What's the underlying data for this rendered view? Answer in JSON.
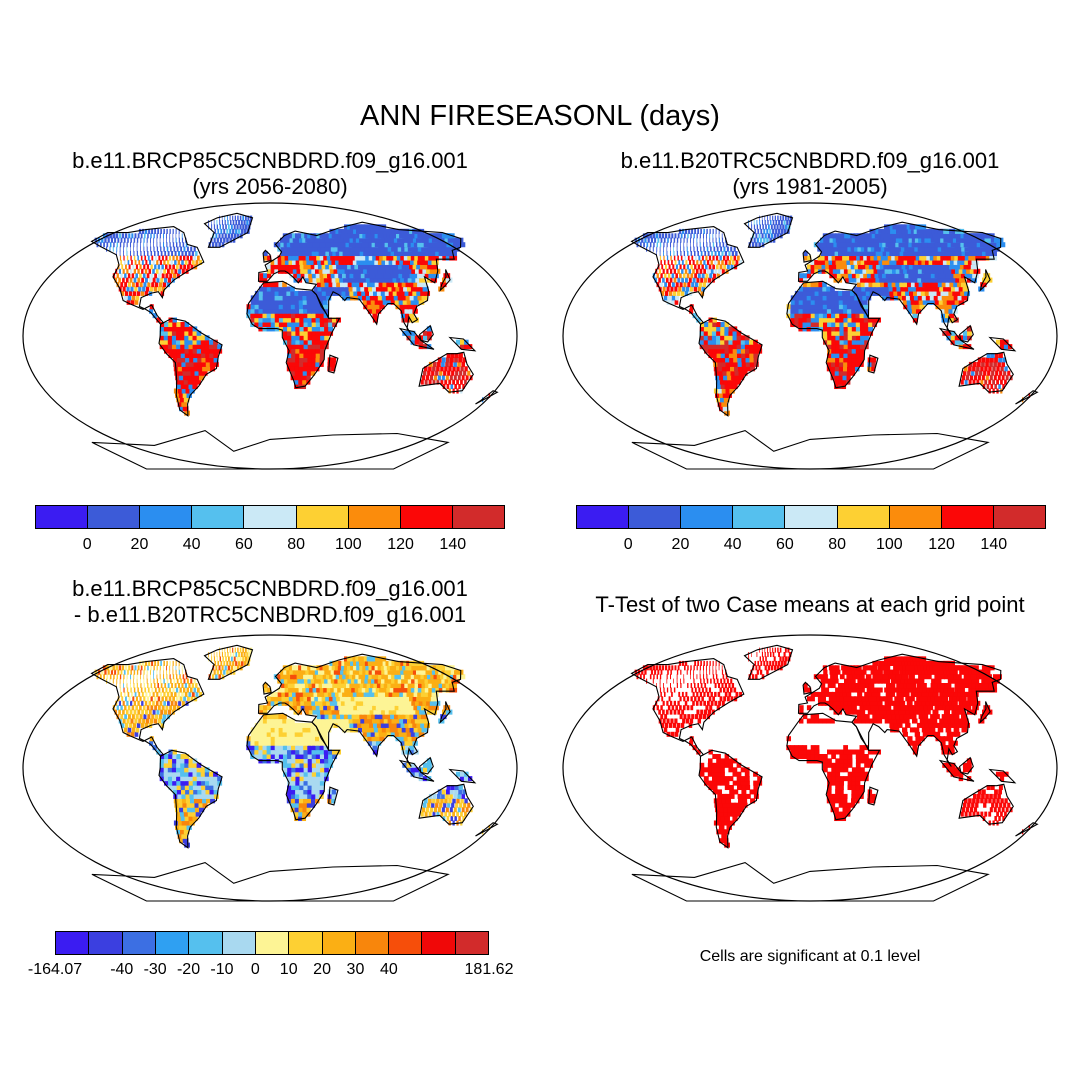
{
  "title": "ANN FIRESEASONL (days)",
  "panels": [
    {
      "id": "case1",
      "title_line1": "b.e11.BRCP85C5CNBDRD.f09_g16.001",
      "title_line2": "(yrs 2056-2080)",
      "palette": "abs"
    },
    {
      "id": "case2",
      "title_line1": "b.e11.B20TRC5CNBDRD.f09_g16.001",
      "title_line2": "(yrs 1981-2005)",
      "palette": "abs"
    },
    {
      "id": "diff",
      "title_line1": "b.e11.BRCP85C5CNBDRD.f09_g16.001",
      "title_line2": "- b.e11.B20TRC5CNBDRD.f09_g16.001",
      "palette": "diff"
    },
    {
      "id": "ttest",
      "title_line1": "T-Test of two Case means at each grid point",
      "title_line2": "",
      "palette": "sig"
    }
  ],
  "colorbar_abs": {
    "colors": [
      "#3b1cf2",
      "#3c5bd8",
      "#2b8ef0",
      "#55c0ee",
      "#cbe9f6",
      "#fdd033",
      "#fb8c0c",
      "#fb0707",
      "#d22b2b"
    ],
    "labels": [
      "0",
      "20",
      "40",
      "60",
      "80",
      "100",
      "120",
      "140"
    ]
  },
  "colorbar_diff": {
    "colors": [
      "#3b1cf2",
      "#3b3fe0",
      "#3c6fe3",
      "#2fa0f2",
      "#55c0ee",
      "#a9d9f0",
      "#fdf495",
      "#fdd033",
      "#fbaf14",
      "#f8860c",
      "#f64e0a",
      "#f00808",
      "#d22b2b"
    ],
    "labels": [
      "-164.07",
      "-40",
      "-30",
      "-20",
      "-10",
      "0",
      "10",
      "20",
      "30",
      "40",
      "181.62"
    ]
  },
  "significance_note": "Cells are significant at 0.1 level"
}
